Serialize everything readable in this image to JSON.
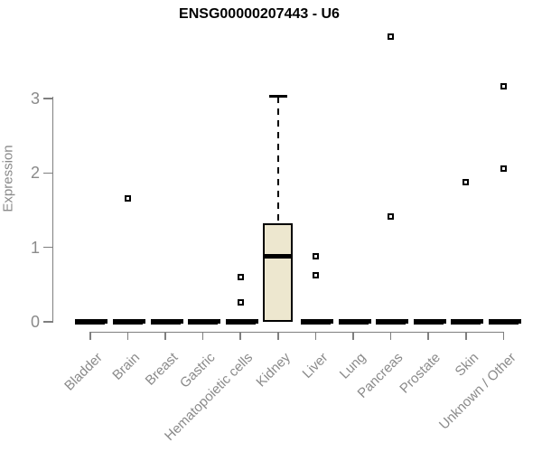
{
  "colors": {
    "background": "#ffffff",
    "box_fill": "#ede7cf",
    "box_border": "#000000",
    "axis_line": "#7f7f7f",
    "label_text": "#8a8a8a",
    "title_text": "#000000"
  },
  "chart_data": {
    "type": "boxplot",
    "title": "ENSG00000207443 - U6",
    "xlabel": "",
    "ylabel": "Expression",
    "ylim": [
      0,
      3
    ],
    "yticks": [
      0,
      1,
      2,
      3
    ],
    "grid": false,
    "legend": false,
    "categories": [
      "Bladder",
      "Brain",
      "Breast",
      "Gastric",
      "Hematopoietic cells",
      "Kidney",
      "Liver",
      "Lung",
      "Pancreas",
      "Prostate",
      "Skin",
      "Unknown / Other"
    ],
    "series": [
      {
        "category": "Bladder",
        "q1": 0,
        "median": 0,
        "q3": 0,
        "whisker_low": 0,
        "whisker_high": 0,
        "outliers": []
      },
      {
        "category": "Brain",
        "q1": 0,
        "median": 0,
        "q3": 0,
        "whisker_low": 0,
        "whisker_high": 0,
        "outliers": [
          1.66
        ]
      },
      {
        "category": "Breast",
        "q1": 0,
        "median": 0,
        "q3": 0,
        "whisker_low": 0,
        "whisker_high": 0,
        "outliers": []
      },
      {
        "category": "Gastric",
        "q1": 0,
        "median": 0,
        "q3": 0,
        "whisker_low": 0,
        "whisker_high": 0,
        "outliers": []
      },
      {
        "category": "Hematopoietic cells",
        "q1": 0,
        "median": 0,
        "q3": 0,
        "whisker_low": 0,
        "whisker_high": 0,
        "outliers": [
          0.6,
          0.26
        ]
      },
      {
        "category": "Kidney",
        "q1": 0,
        "median": 0.88,
        "q3": 1.32,
        "whisker_low": 0,
        "whisker_high": 3.03,
        "outliers": []
      },
      {
        "category": "Liver",
        "q1": 0,
        "median": 0,
        "q3": 0,
        "whisker_low": 0,
        "whisker_high": 0,
        "outliers": [
          0.88,
          0.62
        ]
      },
      {
        "category": "Lung",
        "q1": 0,
        "median": 0,
        "q3": 0,
        "whisker_low": 0,
        "whisker_high": 0,
        "outliers": []
      },
      {
        "category": "Pancreas",
        "q1": 0,
        "median": 0,
        "q3": 0,
        "whisker_low": 0,
        "whisker_high": 0,
        "outliers": [
          3.83,
          1.41
        ]
      },
      {
        "category": "Prostate",
        "q1": 0,
        "median": 0,
        "q3": 0,
        "whisker_low": 0,
        "whisker_high": 0,
        "outliers": []
      },
      {
        "category": "Skin",
        "q1": 0,
        "median": 0,
        "q3": 0,
        "whisker_low": 0,
        "whisker_high": 0,
        "outliers": [
          1.88
        ]
      },
      {
        "category": "Unknown / Other",
        "q1": 0,
        "median": 0,
        "q3": 0,
        "whisker_low": 0,
        "whisker_high": 0,
        "outliers": [
          3.16,
          2.06
        ]
      }
    ]
  }
}
